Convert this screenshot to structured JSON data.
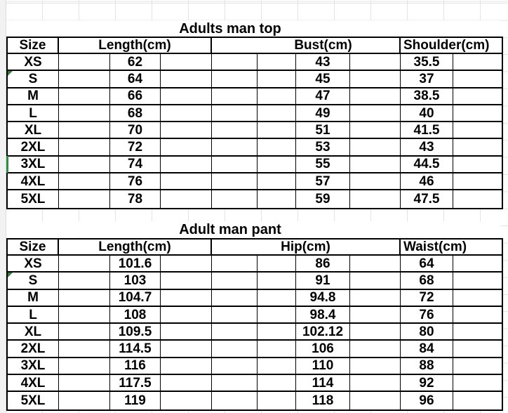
{
  "app": {
    "kind_label": "spreadsheet-size-chart"
  },
  "colors": {
    "selection_green": "#2f8e41",
    "flag_green": "#2e7d32",
    "faint_grid_line": "#e3e3e3",
    "table_line": "#000000",
    "background": "#ffffff"
  },
  "tables": [
    {
      "title": "Adults man top",
      "headers": [
        "Size",
        "Length(cm)",
        "Bust(cm)",
        "Shoulder(cm)"
      ],
      "rows": [
        [
          "XS",
          "62",
          "43",
          "35.5"
        ],
        [
          "S",
          "64",
          "45",
          "37"
        ],
        [
          "M",
          "66",
          "47",
          "38.5"
        ],
        [
          "L",
          "68",
          "49",
          "40"
        ],
        [
          "XL",
          "70",
          "51",
          "41.5"
        ],
        [
          "2XL",
          "72",
          "53",
          "43"
        ],
        [
          "3XL",
          "74",
          "55",
          "44.5"
        ],
        [
          "4XL",
          "76",
          "57",
          "46"
        ],
        [
          "5XL",
          "78",
          "59",
          "47.5"
        ]
      ],
      "flagged_row": "S",
      "selected_row": "3XL"
    },
    {
      "title": "Adult man pant",
      "headers": [
        "Size",
        "Length(cm)",
        "Hip(cm)",
        "Waist(cm)"
      ],
      "rows": [
        [
          "XS",
          "101.6",
          "86",
          "64"
        ],
        [
          "S",
          "103",
          "91",
          "68"
        ],
        [
          "M",
          "104.7",
          "94.8",
          "72"
        ],
        [
          "L",
          "108",
          "98.4",
          "76"
        ],
        [
          "XL",
          "109.5",
          "102.12",
          "80"
        ],
        [
          "2XL",
          "114.5",
          "106",
          "84"
        ],
        [
          "3XL",
          "116",
          "110",
          "88"
        ],
        [
          "4XL",
          "117.5",
          "114",
          "92"
        ],
        [
          "5XL",
          "119",
          "118",
          "96"
        ]
      ],
      "flagged_row": "S",
      "selected_row": null
    }
  ]
}
